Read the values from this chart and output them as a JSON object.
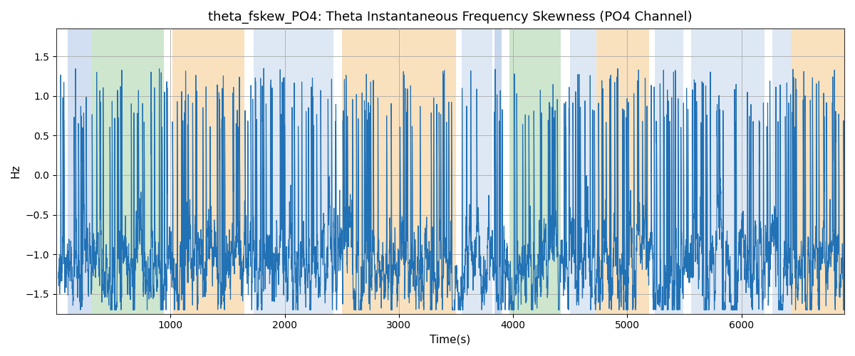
{
  "title": "theta_fskew_PO4: Theta Instantaneous Frequency Skewness (PO4 Channel)",
  "xlabel": "Time(s)",
  "ylabel": "Hz",
  "xlim": [
    0,
    6900
  ],
  "ylim": [
    -1.75,
    1.85
  ],
  "yticks": [
    -1.5,
    -1.0,
    -0.5,
    0.0,
    0.5,
    1.0,
    1.5
  ],
  "xticks": [
    1000,
    2000,
    3000,
    4000,
    5000,
    6000
  ],
  "line_color": "#2171b5",
  "line_width": 0.85,
  "background_color": "#ffffff",
  "grid_color": "#aaaaaa",
  "bands": [
    {
      "xmin": 100,
      "xmax": 310,
      "color": "#aec6e8",
      "alpha": 0.55
    },
    {
      "xmin": 310,
      "xmax": 940,
      "color": "#90c990",
      "alpha": 0.45
    },
    {
      "xmin": 1020,
      "xmax": 1650,
      "color": "#f5c98a",
      "alpha": 0.55
    },
    {
      "xmin": 1730,
      "xmax": 2430,
      "color": "#aec6e8",
      "alpha": 0.4
    },
    {
      "xmin": 2500,
      "xmax": 3500,
      "color": "#f5c98a",
      "alpha": 0.55
    },
    {
      "xmin": 3550,
      "xmax": 3820,
      "color": "#aec6e8",
      "alpha": 0.4
    },
    {
      "xmin": 3840,
      "xmax": 3900,
      "color": "#aec6e8",
      "alpha": 0.7
    },
    {
      "xmin": 3970,
      "xmax": 4420,
      "color": "#90c990",
      "alpha": 0.45
    },
    {
      "xmin": 4500,
      "xmax": 4730,
      "color": "#aec6e8",
      "alpha": 0.4
    },
    {
      "xmin": 4730,
      "xmax": 5190,
      "color": "#f5c98a",
      "alpha": 0.55
    },
    {
      "xmin": 5240,
      "xmax": 5490,
      "color": "#aec6e8",
      "alpha": 0.4
    },
    {
      "xmin": 5560,
      "xmax": 6200,
      "color": "#aec6e8",
      "alpha": 0.4
    },
    {
      "xmin": 6270,
      "xmax": 6430,
      "color": "#aec6e8",
      "alpha": 0.4
    },
    {
      "xmin": 6430,
      "xmax": 6900,
      "color": "#f5c98a",
      "alpha": 0.55
    }
  ]
}
